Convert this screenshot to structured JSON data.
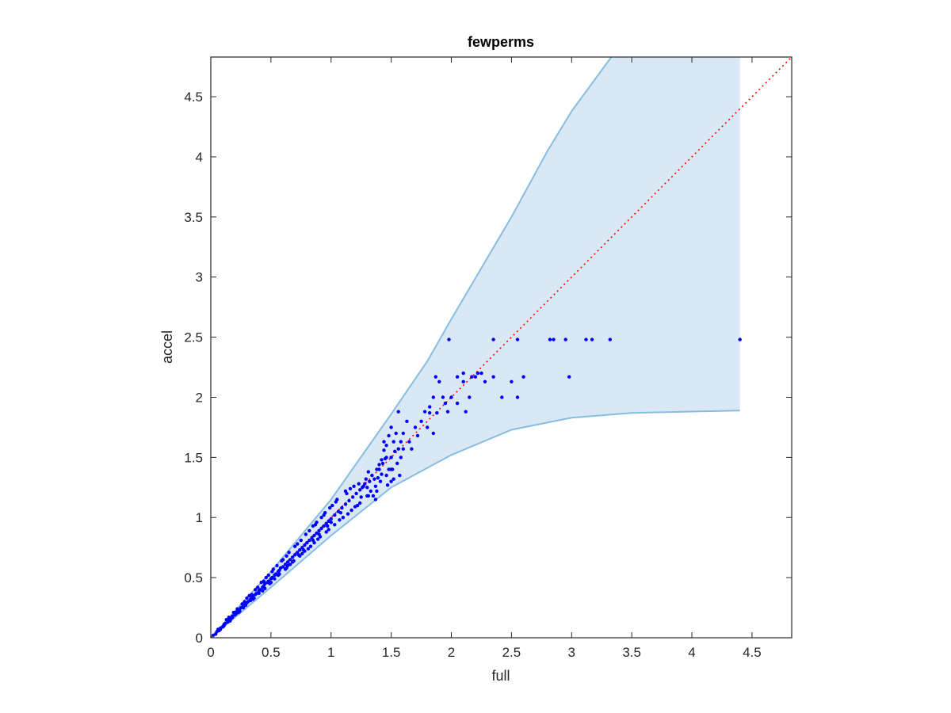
{
  "chart_data": {
    "type": "scatter",
    "title": "fewperms",
    "xlabel": "full",
    "ylabel": "accel",
    "xlim": [
      0,
      4.83
    ],
    "ylim": [
      0,
      4.83
    ],
    "xticks": [
      0,
      0.5,
      1,
      1.5,
      2,
      2.5,
      3,
      3.5,
      4,
      4.5
    ],
    "yticks": [
      0,
      0.5,
      1,
      1.5,
      2,
      2.5,
      3,
      3.5,
      4,
      4.5
    ],
    "xtick_labels": [
      "0",
      "0.5",
      "1",
      "1.5",
      "2",
      "2.5",
      "3",
      "3.5",
      "4",
      "4.5"
    ],
    "ytick_labels": [
      "0",
      "0.5",
      "1",
      "1.5",
      "2",
      "2.5",
      "3",
      "3.5",
      "4",
      "4.5"
    ],
    "grid": false,
    "band": {
      "color": "#d9e8f4",
      "edge_color": "#86bde0",
      "upper": [
        [
          0,
          0
        ],
        [
          0.5,
          0.55
        ],
        [
          1,
          1.15
        ],
        [
          1.5,
          1.86
        ],
        [
          1.8,
          2.3
        ],
        [
          2,
          2.65
        ],
        [
          2.5,
          3.5
        ],
        [
          2.8,
          4.05
        ],
        [
          3.0,
          4.38
        ],
        [
          3.33,
          4.83
        ],
        [
          4.4,
          4.83
        ]
      ],
      "lower": [
        [
          0,
          0
        ],
        [
          0.5,
          0.42
        ],
        [
          1,
          0.85
        ],
        [
          1.5,
          1.25
        ],
        [
          2,
          1.52
        ],
        [
          2.5,
          1.73
        ],
        [
          3,
          1.83
        ],
        [
          3.5,
          1.87
        ],
        [
          4.4,
          1.89
        ]
      ]
    },
    "reference_line": {
      "style": "dotted",
      "color": "#ff0000",
      "from": [
        0,
        0
      ],
      "to": [
        4.83,
        4.83
      ]
    },
    "series": [
      {
        "color": "#0000ff",
        "points": [
          [
            0.02,
            0.02
          ],
          [
            0.04,
            0.03
          ],
          [
            0.05,
            0.05
          ],
          [
            0.07,
            0.06
          ],
          [
            0.08,
            0.08
          ],
          [
            0.1,
            0.09
          ],
          [
            0.11,
            0.11
          ],
          [
            0.12,
            0.12
          ],
          [
            0.14,
            0.13
          ],
          [
            0.15,
            0.15
          ],
          [
            0.17,
            0.16
          ],
          [
            0.18,
            0.18
          ],
          [
            0.2,
            0.19
          ],
          [
            0.21,
            0.2
          ],
          [
            0.22,
            0.22
          ],
          [
            0.24,
            0.23
          ],
          [
            0.25,
            0.25
          ],
          [
            0.27,
            0.26
          ],
          [
            0.28,
            0.27
          ],
          [
            0.3,
            0.29
          ],
          [
            0.31,
            0.3
          ],
          [
            0.33,
            0.32
          ],
          [
            0.34,
            0.33
          ],
          [
            0.35,
            0.35
          ],
          [
            0.37,
            0.36
          ],
          [
            0.38,
            0.37
          ],
          [
            0.4,
            0.39
          ],
          [
            0.41,
            0.4
          ],
          [
            0.43,
            0.42
          ],
          [
            0.44,
            0.43
          ],
          [
            0.45,
            0.45
          ],
          [
            0.47,
            0.46
          ],
          [
            0.48,
            0.47
          ],
          [
            0.5,
            0.49
          ],
          [
            0.51,
            0.5
          ],
          [
            0.53,
            0.52
          ],
          [
            0.54,
            0.53
          ],
          [
            0.56,
            0.55
          ],
          [
            0.57,
            0.56
          ],
          [
            0.58,
            0.58
          ],
          [
            0.6,
            0.59
          ],
          [
            0.62,
            0.61
          ],
          [
            0.64,
            0.63
          ],
          [
            0.66,
            0.65
          ],
          [
            0.68,
            0.67
          ],
          [
            0.7,
            0.69
          ],
          [
            0.72,
            0.71
          ],
          [
            0.74,
            0.73
          ],
          [
            0.76,
            0.75
          ],
          [
            0.78,
            0.77
          ],
          [
            0.8,
            0.79
          ],
          [
            0.82,
            0.81
          ],
          [
            0.84,
            0.83
          ],
          [
            0.86,
            0.85
          ],
          [
            0.88,
            0.87
          ],
          [
            0.9,
            0.89
          ],
          [
            0.92,
            0.91
          ],
          [
            0.94,
            0.93
          ],
          [
            0.96,
            0.95
          ],
          [
            0.98,
            0.97
          ],
          [
            1.0,
            0.99
          ],
          [
            1.03,
            1.02
          ],
          [
            1.06,
            1.05
          ],
          [
            1.09,
            1.08
          ],
          [
            1.12,
            1.11
          ],
          [
            1.15,
            1.14
          ],
          [
            1.18,
            1.17
          ],
          [
            1.21,
            1.2
          ],
          [
            1.24,
            1.23
          ],
          [
            1.27,
            1.26
          ],
          [
            0.06,
            0.07
          ],
          [
            0.13,
            0.15
          ],
          [
            0.19,
            0.21
          ],
          [
            0.26,
            0.28
          ],
          [
            0.32,
            0.35
          ],
          [
            0.39,
            0.42
          ],
          [
            0.46,
            0.5
          ],
          [
            0.52,
            0.57
          ],
          [
            0.59,
            0.64
          ],
          [
            0.65,
            0.71
          ],
          [
            0.72,
            0.78
          ],
          [
            0.79,
            0.86
          ],
          [
            0.85,
            0.93
          ],
          [
            0.92,
            1.0
          ],
          [
            0.99,
            1.08
          ],
          [
            1.05,
            1.15
          ],
          [
            1.12,
            1.22
          ],
          [
            0.3,
            0.33
          ],
          [
            0.42,
            0.46
          ],
          [
            0.55,
            0.6
          ],
          [
            0.08,
            0.07
          ],
          [
            0.16,
            0.14
          ],
          [
            0.23,
            0.21
          ],
          [
            0.29,
            0.27
          ],
          [
            0.36,
            0.33
          ],
          [
            0.43,
            0.39
          ],
          [
            0.49,
            0.45
          ],
          [
            0.56,
            0.52
          ],
          [
            0.63,
            0.58
          ],
          [
            0.69,
            0.64
          ],
          [
            0.76,
            0.7
          ],
          [
            0.83,
            0.76
          ],
          [
            0.89,
            0.82
          ],
          [
            0.96,
            0.88
          ],
          [
            1.03,
            0.94
          ],
          [
            1.1,
            1.0
          ],
          [
            1.17,
            1.06
          ],
          [
            1.24,
            1.12
          ],
          [
            1.3,
            1.18
          ],
          [
            0.5,
            0.46
          ],
          [
            0.62,
            0.57
          ],
          [
            0.74,
            0.68
          ],
          [
            0.86,
            0.79
          ],
          [
            0.98,
            0.9
          ],
          [
            1.14,
            1.03
          ],
          [
            1.2,
            1.09
          ],
          [
            0.35,
            0.32
          ],
          [
            0.45,
            0.41
          ],
          [
            0.68,
            0.63
          ],
          [
            0.81,
            0.74
          ],
          [
            0.15,
            0.17
          ],
          [
            0.22,
            0.24
          ],
          [
            0.37,
            0.4
          ],
          [
            0.48,
            0.52
          ],
          [
            0.6,
            0.65
          ],
          [
            0.7,
            0.76
          ],
          [
            0.82,
            0.89
          ],
          [
            0.88,
            0.96
          ],
          [
            0.94,
            1.02
          ],
          [
            1.01,
            1.1
          ],
          [
            0.27,
            0.25
          ],
          [
            0.33,
            0.31
          ],
          [
            0.4,
            0.37
          ],
          [
            0.53,
            0.49
          ],
          [
            0.66,
            0.61
          ],
          [
            0.78,
            0.72
          ],
          [
            0.91,
            0.84
          ],
          [
            1.07,
            0.98
          ],
          [
            0.57,
            0.53
          ],
          [
            0.73,
            0.69
          ],
          [
            0.85,
            0.81
          ],
          [
            0.97,
            0.93
          ],
          [
            1.08,
            1.04
          ],
          [
            0.64,
            0.6
          ],
          [
            0.77,
            0.73
          ],
          [
            0.9,
            0.86
          ],
          [
            1.0,
            0.96
          ],
          [
            0.11,
            0.1
          ],
          [
            0.18,
            0.17
          ],
          [
            0.24,
            0.22
          ],
          [
            0.2,
            0.21
          ],
          [
            0.28,
            0.3
          ],
          [
            0.34,
            0.36
          ],
          [
            0.44,
            0.47
          ],
          [
            0.51,
            0.55
          ],
          [
            0.63,
            0.68
          ],
          [
            0.75,
            0.81
          ],
          [
            0.87,
            0.94
          ],
          [
            0.95,
            1.04
          ],
          [
            1.04,
            1.13
          ],
          [
            1.28,
            1.28
          ],
          [
            1.3,
            1.25
          ],
          [
            1.32,
            1.3
          ],
          [
            1.34,
            1.35
          ],
          [
            1.36,
            1.32
          ],
          [
            1.38,
            1.4
          ],
          [
            1.33,
            1.22
          ],
          [
            1.35,
            1.18
          ],
          [
            1.37,
            1.26
          ],
          [
            1.39,
            1.33
          ],
          [
            1.4,
            1.4
          ],
          [
            1.42,
            1.36
          ],
          [
            1.43,
            1.45
          ],
          [
            1.45,
            1.49
          ],
          [
            1.46,
            1.35
          ],
          [
            1.47,
            1.27
          ],
          [
            1.48,
            1.4
          ],
          [
            1.44,
            1.56
          ],
          [
            1.46,
            1.6
          ],
          [
            1.41,
            1.3
          ],
          [
            1.26,
            1.25
          ],
          [
            1.29,
            1.32
          ],
          [
            1.31,
            1.38
          ],
          [
            1.25,
            1.17
          ],
          [
            1.22,
            1.1
          ],
          [
            1.19,
            1.26
          ],
          [
            1.16,
            1.24
          ],
          [
            1.13,
            1.2
          ],
          [
            1.23,
            1.28
          ],
          [
            1.31,
            1.18
          ],
          [
            1.5,
            1.5
          ],
          [
            1.5,
            1.4
          ],
          [
            1.5,
            1.3
          ],
          [
            1.52,
            1.63
          ],
          [
            1.53,
            1.55
          ],
          [
            1.55,
            1.45
          ],
          [
            1.56,
            1.57
          ],
          [
            1.58,
            1.63
          ],
          [
            1.6,
            1.57
          ],
          [
            1.57,
            1.35
          ],
          [
            1.42,
            1.48
          ],
          [
            1.44,
            1.63
          ],
          [
            1.48,
            1.68
          ],
          [
            1.5,
            1.75
          ],
          [
            1.51,
            1.4
          ],
          [
            1.54,
            1.7
          ],
          [
            1.56,
            1.88
          ],
          [
            1.4,
            1.44
          ],
          [
            1.38,
            1.22
          ],
          [
            1.37,
            1.15
          ],
          [
            1.65,
            1.63
          ],
          [
            1.67,
            1.57
          ],
          [
            1.7,
            1.75
          ],
          [
            1.72,
            1.68
          ],
          [
            1.75,
            1.8
          ],
          [
            1.78,
            1.88
          ],
          [
            1.8,
            1.75
          ],
          [
            1.82,
            1.87
          ],
          [
            1.85,
            2.0
          ],
          [
            1.88,
            1.87
          ],
          [
            1.9,
            2.13
          ],
          [
            1.85,
            1.7
          ],
          [
            1.87,
            2.17
          ],
          [
            1.93,
            2.0
          ],
          [
            1.95,
            1.95
          ],
          [
            2.0,
            2.0
          ],
          [
            2.05,
            2.17
          ],
          [
            2.1,
            2.13
          ],
          [
            2.12,
            1.88
          ],
          [
            2.15,
            2.0
          ],
          [
            2.2,
            2.17
          ],
          [
            2.22,
            2.2
          ],
          [
            2.28,
            2.13
          ],
          [
            2.35,
            2.17
          ],
          [
            2.42,
            2.0
          ],
          [
            2.5,
            2.13
          ],
          [
            2.55,
            2.0
          ],
          [
            2.6,
            2.17
          ],
          [
            2.1,
            2.2
          ],
          [
            2.25,
            2.2
          ],
          [
            1.98,
            2.48
          ],
          [
            2.35,
            2.48
          ],
          [
            2.55,
            2.48
          ],
          [
            2.82,
            2.48
          ],
          [
            2.85,
            2.48
          ],
          [
            2.95,
            2.48
          ],
          [
            3.12,
            2.48
          ],
          [
            3.17,
            2.48
          ],
          [
            3.32,
            2.48
          ],
          [
            4.4,
            2.48
          ],
          [
            2.17,
            2.17
          ],
          [
            2.98,
            2.17
          ],
          [
            1.97,
            1.88
          ],
          [
            2.05,
            1.95
          ],
          [
            1.82,
            1.92
          ],
          [
            1.6,
            1.7
          ],
          [
            1.63,
            1.8
          ],
          [
            1.58,
            1.5
          ],
          [
            1.52,
            1.32
          ],
          [
            1.46,
            1.5
          ]
        ]
      }
    ]
  }
}
